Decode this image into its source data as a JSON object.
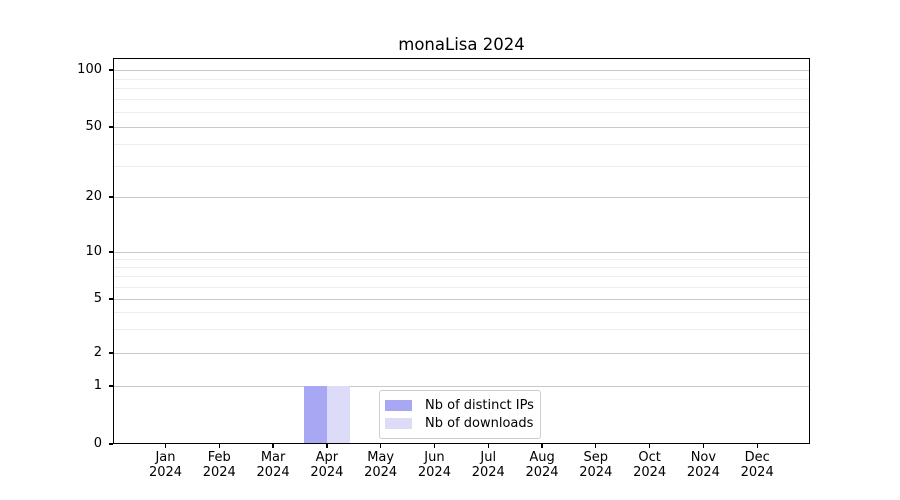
{
  "chart_data": {
    "type": "bar",
    "title": "monaLisa 2024",
    "x_axis": {
      "months": [
        "Jan",
        "Feb",
        "Mar",
        "Apr",
        "May",
        "Jun",
        "Jul",
        "Aug",
        "Sep",
        "Oct",
        "Nov",
        "Dec"
      ],
      "year": "2024"
    },
    "y_axis": {
      "scale": "symlog",
      "tick_labels": [
        "0",
        "1",
        "2",
        "5",
        "10",
        "20",
        "50",
        "100"
      ],
      "range": [
        0,
        100
      ],
      "minor_gridline_values": [
        3,
        4,
        6,
        7,
        8,
        9,
        30,
        40,
        60,
        70,
        80,
        90
      ]
    },
    "series": [
      {
        "name": "Nb of distinct IPs",
        "color": "#a7a7f3",
        "values": [
          0,
          0,
          0,
          1,
          0,
          0,
          0,
          0,
          0,
          0,
          0,
          0
        ]
      },
      {
        "name": "Nb of downloads",
        "color": "#dcdcf8",
        "values": [
          0,
          0,
          0,
          1,
          0,
          0,
          0,
          0,
          0,
          0,
          0,
          0
        ]
      }
    ],
    "legend": {
      "position": "inside-bottom-center",
      "items": [
        "Nb of distinct IPs",
        "Nb of downloads"
      ]
    },
    "grid": {
      "horizontal_major": true,
      "horizontal_minor": true,
      "vertical": false
    }
  },
  "colors": {
    "grid_major": "#c9c9c9",
    "grid_minor": "#ededed",
    "axis": "#000000",
    "legend_border": "#cccccc"
  }
}
